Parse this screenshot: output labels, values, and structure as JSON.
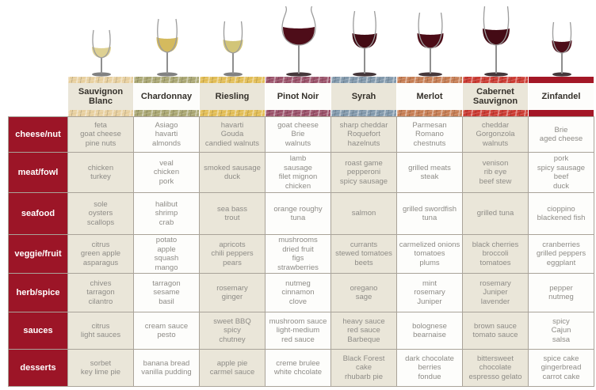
{
  "palette": {
    "row_label_bg": "#9c1527",
    "beige_cell": "#eae6d9",
    "white_cell": "#fdfdfb",
    "grid_line": "#a9a399",
    "cell_text": "#8e8c87",
    "header_text": "#35312b"
  },
  "glasses": [
    {
      "column": "Sauvignon Blanc",
      "icon": "sauvignon-blanc-wine-glass-icon",
      "wine_color": "#ded193",
      "band_color": "#e7cf9e",
      "band_style": "textured"
    },
    {
      "column": "Chardonnay",
      "icon": "chardonnay-wine-glass-icon",
      "wine_color": "#d4ba5e",
      "band_color": "#a9a672",
      "band_style": "textured"
    },
    {
      "column": "Riesling",
      "icon": "riesling-wine-glass-icon",
      "wine_color": "#d2c578",
      "band_color": "#e2bd55",
      "band_style": "textured"
    },
    {
      "column": "Pinot Noir",
      "icon": "pinot-noir-wine-glass-icon",
      "wine_color": "#4e0d19",
      "band_color": "#9a5169",
      "band_style": "textured"
    },
    {
      "column": "Syrah",
      "icon": "syrah-wine-glass-icon",
      "wine_color": "#430b14",
      "band_color": "#8198ab",
      "band_style": "textured"
    },
    {
      "column": "Merlot",
      "icon": "merlot-wine-glass-icon",
      "wine_color": "#4c0c17",
      "band_color": "#c67d53",
      "band_style": "textured"
    },
    {
      "column": "Cabernet Sauvignon",
      "icon": "cabernet-sauvignon-wine-glass-icon",
      "wine_color": "#440b15",
      "band_color": "#cb3a32",
      "band_style": "textured"
    },
    {
      "column": "Zinfandel",
      "icon": "zinfandel-wine-glass-icon",
      "wine_color": "#4e0d19",
      "band_color": "#a31726",
      "band_style": "solid"
    }
  ],
  "chart_data": {
    "type": "table",
    "columns": [
      "Sauvignon Blanc",
      "Chardonnay",
      "Riesling",
      "Pinot Noir",
      "Syrah",
      "Merlot",
      "Cabernet Sauvignon",
      "Zinfandel"
    ],
    "rows": [
      {
        "label": "cheese/nut",
        "cells": [
          [
            "feta",
            "goat cheese",
            "pine nuts"
          ],
          [
            "Asiago",
            "havarti",
            "almonds"
          ],
          [
            "havarti",
            "Gouda",
            "candied walnuts"
          ],
          [
            "goat cheese",
            "Brie",
            "walnuts"
          ],
          [
            "sharp cheddar",
            "Roquefort",
            "hazelnuts"
          ],
          [
            "Parmesan",
            "Romano",
            "chestnuts"
          ],
          [
            "cheddar",
            "Gorgonzola",
            "walnuts"
          ],
          [
            "Brie",
            "aged cheese"
          ]
        ]
      },
      {
        "label": "meat/fowl",
        "cells": [
          [
            "chicken",
            "turkey"
          ],
          [
            "veal",
            "chicken",
            "pork"
          ],
          [
            "smoked sausage",
            "duck"
          ],
          [
            "lamb",
            "sausage",
            "filet mignon",
            "chicken"
          ],
          [
            "roast game",
            "pepperoni",
            "spicy sausage"
          ],
          [
            "grilled meats",
            "steak"
          ],
          [
            "venison",
            "rib eye",
            "beef stew"
          ],
          [
            "pork",
            "spicy sausage",
            "beef",
            "duck"
          ]
        ]
      },
      {
        "label": "seafood",
        "cells": [
          [
            "sole",
            "oysters",
            "scallops"
          ],
          [
            "halibut",
            "shrimp",
            "crab"
          ],
          [
            "sea bass",
            "trout"
          ],
          [
            "orange roughy",
            "tuna"
          ],
          [
            "salmon"
          ],
          [
            "grilled swordfish",
            "tuna"
          ],
          [
            "grilled tuna"
          ],
          [
            "cioppino",
            "blackened fish"
          ]
        ]
      },
      {
        "label": "veggie/fruit",
        "cells": [
          [
            "citrus",
            "green apple",
            "asparagus"
          ],
          [
            "potato",
            "apple",
            "squash",
            "mango"
          ],
          [
            "apricots",
            "chili peppers",
            "pears"
          ],
          [
            "mushrooms",
            "dried fruit",
            "figs",
            "strawberries"
          ],
          [
            "currants",
            "stewed tomatoes",
            "beets"
          ],
          [
            "carmelized onions",
            "tomatoes",
            "plums"
          ],
          [
            "black cherries",
            "broccoli",
            "tomatoes"
          ],
          [
            "cranberries",
            "grilled peppers",
            "eggplant"
          ]
        ]
      },
      {
        "label": "herb/spice",
        "cells": [
          [
            "chives",
            "tarragon",
            "cilantro"
          ],
          [
            "tarragon",
            "sesame",
            "basil"
          ],
          [
            "rosemary",
            "ginger"
          ],
          [
            "nutmeg",
            "cinnamon",
            "clove"
          ],
          [
            "oregano",
            "sage"
          ],
          [
            "mint",
            "rosemary",
            "Juniper"
          ],
          [
            "rosemary",
            "Juniper",
            "lavender"
          ],
          [
            "pepper",
            "nutmeg"
          ]
        ]
      },
      {
        "label": "sauces",
        "cells": [
          [
            "citrus",
            "light sauces"
          ],
          [
            "cream sauce",
            "pesto"
          ],
          [
            "sweet BBQ",
            "spicy",
            "chutney"
          ],
          [
            "mushroom sauce",
            "light-medium",
            "red sauce"
          ],
          [
            "heavy sauce",
            "red sauce",
            "Barbeque"
          ],
          [
            "bolognese",
            "bearnaise"
          ],
          [
            "brown sauce",
            "tomato sauce"
          ],
          [
            "spicy",
            "Cajun",
            "salsa"
          ]
        ]
      },
      {
        "label": "desserts",
        "cells": [
          [
            "sorbet",
            "key lime pie"
          ],
          [
            "banana bread",
            "vanilla pudding"
          ],
          [
            "apple pie",
            "carmel sauce"
          ],
          [
            "creme brulee",
            "white chcolate"
          ],
          [
            "Black Forest",
            "cake",
            "rhubarb pie"
          ],
          [
            "dark chocolate",
            "berries",
            "fondue"
          ],
          [
            "bittersweet",
            "chocolate",
            "espresso gelato"
          ],
          [
            "spice cake",
            "gingerbread",
            "carrot cake"
          ]
        ]
      }
    ]
  }
}
